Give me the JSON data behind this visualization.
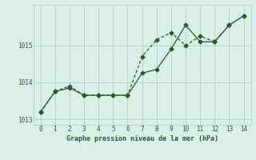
{
  "line1_x": [
    0,
    1,
    2,
    3,
    4,
    5,
    6,
    7,
    8,
    9,
    10,
    11,
    12,
    13,
    14
  ],
  "line1_y": [
    1013.2,
    1013.75,
    1013.85,
    1013.65,
    1013.65,
    1013.65,
    1013.65,
    1014.25,
    1014.35,
    1014.9,
    1015.55,
    1015.1,
    1015.1,
    1015.55,
    1015.8
  ],
  "line2_x": [
    0,
    1,
    2,
    3,
    4,
    5,
    6,
    7,
    8,
    9,
    10,
    11,
    12,
    13,
    14
  ],
  "line2_y": [
    1013.2,
    1013.75,
    1013.9,
    1013.65,
    1013.65,
    1013.65,
    1013.65,
    1014.7,
    1015.15,
    1015.35,
    1015.0,
    1015.25,
    1015.1,
    1015.55,
    1015.8
  ],
  "line_color": "#2d5a27",
  "bg_color": "#d8f0e8",
  "grid_color": "#aad0c0",
  "xlabel": "Graphe pression niveau de la mer (hPa)",
  "xlim": [
    -0.5,
    14.5
  ],
  "ylim": [
    1012.85,
    1016.1
  ],
  "yticks": [
    1013,
    1014,
    1015
  ],
  "xticks": [
    0,
    1,
    2,
    3,
    4,
    5,
    6,
    7,
    8,
    9,
    10,
    11,
    12,
    13,
    14
  ]
}
